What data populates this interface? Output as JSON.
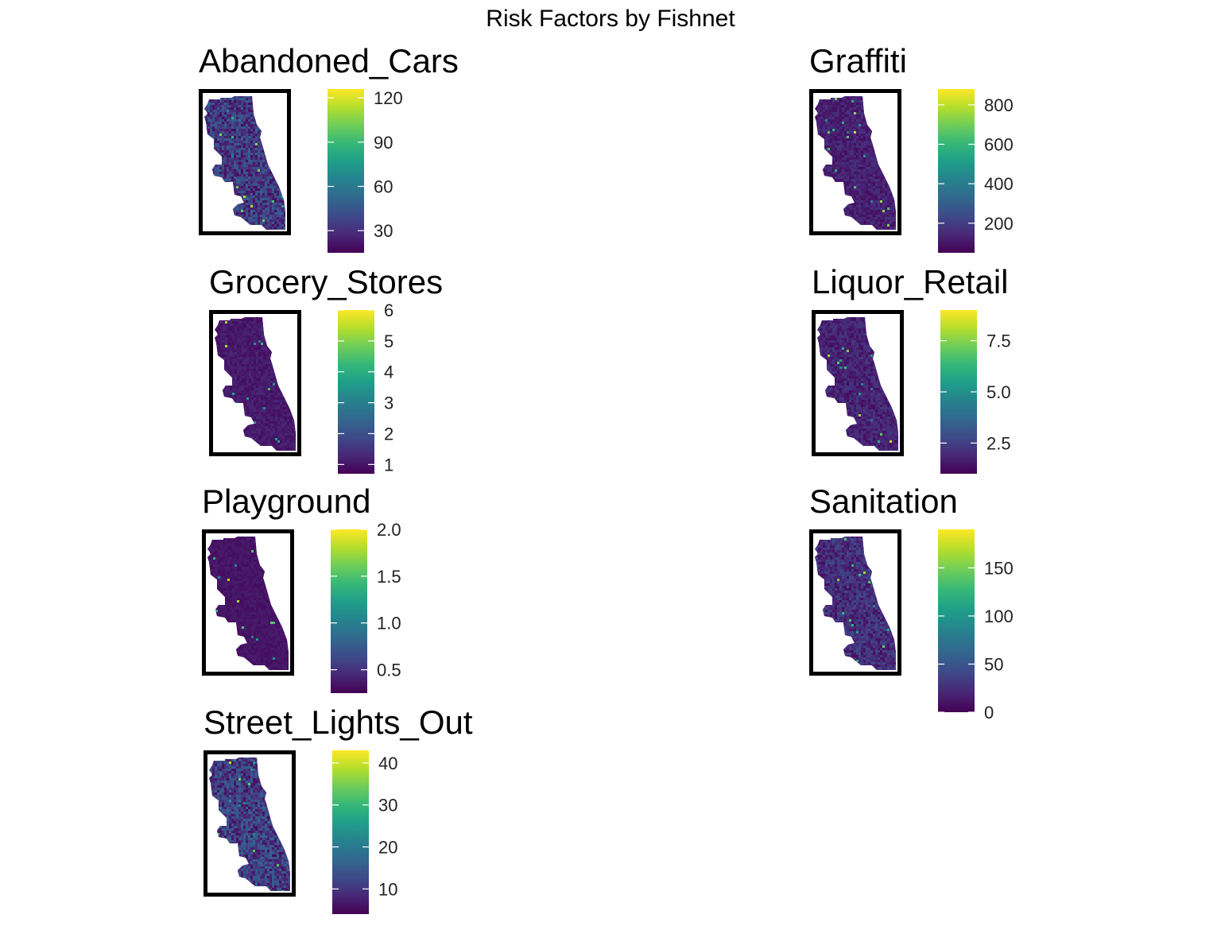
{
  "title": "Risk Factors by Fishnet",
  "chart_data": [
    {
      "type": "heatmap",
      "title": "Abandoned_Cars",
      "fill": "viridis",
      "legend": {
        "min": 15,
        "max": 126,
        "ticks": [
          30,
          60,
          90,
          120
        ]
      }
    },
    {
      "type": "heatmap",
      "title": "Graffiti",
      "fill": "viridis",
      "legend": {
        "min": 50,
        "max": 880,
        "ticks": [
          200,
          400,
          600,
          800
        ]
      }
    },
    {
      "type": "heatmap",
      "title": "Grocery_Stores",
      "fill": "viridis",
      "legend": {
        "min": 0.7,
        "max": 6,
        "ticks": [
          1,
          2,
          3,
          4,
          5,
          6
        ]
      }
    },
    {
      "type": "heatmap",
      "title": "Liquor_Retail",
      "fill": "viridis",
      "legend": {
        "min": 1,
        "max": 9,
        "ticks": [
          2.5,
          5.0,
          7.5
        ]
      }
    },
    {
      "type": "heatmap",
      "title": "Playground",
      "fill": "viridis",
      "legend": {
        "min": 0.25,
        "max": 2.0,
        "ticks": [
          0.5,
          1.0,
          1.5,
          2.0
        ]
      }
    },
    {
      "type": "heatmap",
      "title": "Sanitation",
      "fill": "viridis",
      "legend": {
        "min": 0,
        "max": 190,
        "ticks": [
          0,
          50,
          100,
          150
        ]
      }
    },
    {
      "type": "heatmap",
      "title": "Street_Lights_Out",
      "fill": "viridis",
      "legend": {
        "min": 4,
        "max": 43,
        "ticks": [
          10,
          20,
          30,
          40
        ]
      }
    }
  ],
  "colors": {
    "frame": "#000000",
    "viridis_low": "#440154",
    "viridis_mid": "#21908C",
    "viridis_high": "#FDE725"
  }
}
